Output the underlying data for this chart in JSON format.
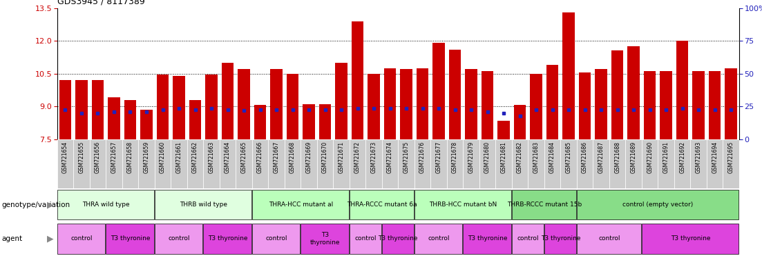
{
  "title": "GDS3945 / 8117389",
  "samples": [
    "GSM721654",
    "GSM721655",
    "GSM721656",
    "GSM721657",
    "GSM721658",
    "GSM721659",
    "GSM721660",
    "GSM721661",
    "GSM721662",
    "GSM721663",
    "GSM721664",
    "GSM721665",
    "GSM721666",
    "GSM721667",
    "GSM721668",
    "GSM721669",
    "GSM721670",
    "GSM721671",
    "GSM721672",
    "GSM721673",
    "GSM721674",
    "GSM721675",
    "GSM721676",
    "GSM721677",
    "GSM721678",
    "GSM721679",
    "GSM721680",
    "GSM721681",
    "GSM721682",
    "GSM721683",
    "GSM721684",
    "GSM721685",
    "GSM721686",
    "GSM721687",
    "GSM721688",
    "GSM721689",
    "GSM721690",
    "GSM721691",
    "GSM721692",
    "GSM721693",
    "GSM721694",
    "GSM721695"
  ],
  "bar_values": [
    10.2,
    10.2,
    10.2,
    9.4,
    9.3,
    8.85,
    10.45,
    10.4,
    9.3,
    10.45,
    11.0,
    10.7,
    9.05,
    10.7,
    10.5,
    9.1,
    9.1,
    11.0,
    12.9,
    10.5,
    10.75,
    10.7,
    10.75,
    11.9,
    11.6,
    10.7,
    10.6,
    8.35,
    9.05,
    10.5,
    10.9,
    13.3,
    10.55,
    10.7,
    11.55,
    11.75,
    10.6,
    10.6,
    12.0,
    10.6,
    10.6,
    10.75
  ],
  "percentile_values": [
    8.85,
    8.7,
    8.7,
    8.75,
    8.75,
    8.75,
    8.85,
    8.9,
    8.85,
    8.9,
    8.85,
    8.8,
    8.85,
    8.85,
    8.85,
    8.85,
    8.85,
    8.85,
    8.9,
    8.9,
    8.9,
    8.9,
    8.9,
    8.9,
    8.85,
    8.85,
    8.75,
    8.7,
    8.55,
    8.85,
    8.85,
    8.85,
    8.85,
    8.85,
    8.85,
    8.85,
    8.85,
    8.85,
    8.9,
    8.85,
    8.85,
    8.85
  ],
  "ymin": 7.5,
  "ymax": 13.5,
  "yticks_left": [
    7.5,
    9.0,
    10.5,
    12.0,
    13.5
  ],
  "yticks_right_labels": [
    "0",
    "25",
    "50",
    "75",
    "100%"
  ],
  "yticks_right_values": [
    7.5,
    9.0,
    10.5,
    12.0,
    13.5
  ],
  "hlines": [
    9.0,
    10.5,
    12.0
  ],
  "bar_color": "#cc0000",
  "percentile_color": "#2222bb",
  "bar_width": 0.75,
  "genotype_groups": [
    {
      "label": "THRA wild type",
      "start": 0,
      "end": 5,
      "color": "#e0ffe0"
    },
    {
      "label": "THRB wild type",
      "start": 6,
      "end": 11,
      "color": "#e0ffe0"
    },
    {
      "label": "THRA-HCC mutant al",
      "start": 12,
      "end": 17,
      "color": "#bbffbb"
    },
    {
      "label": "THRA-RCCC mutant 6a",
      "start": 18,
      "end": 21,
      "color": "#bbffbb"
    },
    {
      "label": "THRB-HCC mutant bN",
      "start": 22,
      "end": 27,
      "color": "#bbffbb"
    },
    {
      "label": "THRB-RCCC mutant 15b",
      "start": 28,
      "end": 31,
      "color": "#88dd88"
    },
    {
      "label": "control (empty vector)",
      "start": 32,
      "end": 41,
      "color": "#88dd88"
    }
  ],
  "agent_groups": [
    {
      "label": "control",
      "start": 0,
      "end": 2,
      "color": "#ee99ee"
    },
    {
      "label": "T3 thyronine",
      "start": 3,
      "end": 5,
      "color": "#dd44dd"
    },
    {
      "label": "control",
      "start": 6,
      "end": 8,
      "color": "#ee99ee"
    },
    {
      "label": "T3 thyronine",
      "start": 9,
      "end": 11,
      "color": "#dd44dd"
    },
    {
      "label": "control",
      "start": 12,
      "end": 14,
      "color": "#ee99ee"
    },
    {
      "label": "T3\nthyronine",
      "start": 15,
      "end": 17,
      "color": "#dd44dd"
    },
    {
      "label": "control",
      "start": 18,
      "end": 19,
      "color": "#ee99ee"
    },
    {
      "label": "T3 thyronine",
      "start": 20,
      "end": 21,
      "color": "#dd44dd"
    },
    {
      "label": "control",
      "start": 22,
      "end": 24,
      "color": "#ee99ee"
    },
    {
      "label": "T3 thyronine",
      "start": 25,
      "end": 27,
      "color": "#dd44dd"
    },
    {
      "label": "control",
      "start": 28,
      "end": 29,
      "color": "#ee99ee"
    },
    {
      "label": "T3 thyronine",
      "start": 30,
      "end": 31,
      "color": "#dd44dd"
    },
    {
      "label": "control",
      "start": 32,
      "end": 35,
      "color": "#ee99ee"
    },
    {
      "label": "T3 thyronine",
      "start": 36,
      "end": 41,
      "color": "#dd44dd"
    }
  ],
  "left_tick_color": "#cc0000",
  "right_tick_color": "#2222bb",
  "title_color": "#000000",
  "xticklabel_bg": "#cccccc",
  "legend_count_color": "#cc0000",
  "legend_percentile_color": "#2222bb"
}
